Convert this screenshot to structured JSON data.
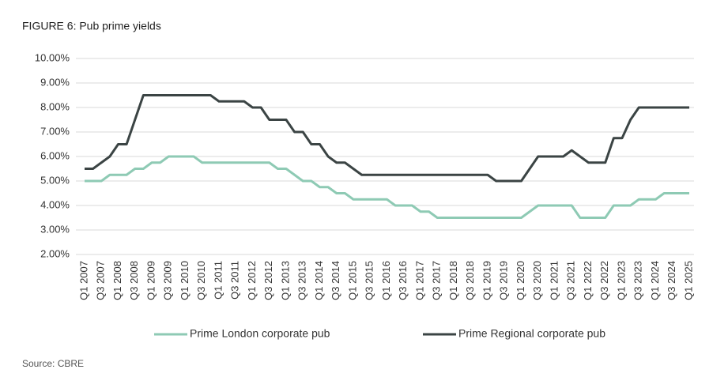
{
  "chart_data": {
    "type": "line",
    "title": "FIGURE 6: Pub prime yields",
    "source": "Source: CBRE",
    "categories": [
      "Q1 2007",
      null,
      "Q3 2007",
      null,
      "Q1 2008",
      null,
      "Q3 2008",
      null,
      "Q1 2009",
      null,
      "Q3 2009",
      null,
      "Q1 2010",
      null,
      "Q3 2010",
      null,
      "Q1 2011",
      null,
      "Q3 2011",
      null,
      "Q1 2012",
      null,
      "Q3 2012",
      null,
      "Q1 2013",
      null,
      "Q3 2013",
      null,
      "Q1 2014",
      null,
      "Q3 2014",
      null,
      "Q1 2015",
      null,
      "Q3 2015",
      null,
      "Q1 2016",
      null,
      "Q3 2016",
      null,
      "Q1 2017",
      null,
      "Q3 2017",
      null,
      "Q1 2018",
      null,
      "Q3 2018",
      null,
      "Q1 2019",
      null,
      "Q3 2019",
      null,
      "Q1 2020",
      null,
      "Q3 2020",
      null,
      "Q1 2021",
      null,
      "Q3 2021",
      null,
      "Q1 2022",
      null,
      "Q3 2022",
      null,
      "Q1 2023",
      null,
      "Q3 2023",
      null,
      "Q1 2024",
      null,
      "Q3 2024",
      null,
      "Q1 2025"
    ],
    "series": [
      {
        "name": "Prime London corporate pub",
        "color": "#8ecab4",
        "values": [
          5.0,
          5.0,
          5.0,
          5.25,
          5.25,
          5.25,
          5.5,
          5.5,
          5.75,
          5.75,
          6.0,
          6.0,
          6.0,
          6.0,
          5.75,
          5.75,
          5.75,
          5.75,
          5.75,
          5.75,
          5.75,
          5.75,
          5.75,
          5.5,
          5.5,
          5.25,
          5.0,
          5.0,
          4.75,
          4.75,
          4.5,
          4.5,
          4.25,
          4.25,
          4.25,
          4.25,
          4.25,
          4.0,
          4.0,
          4.0,
          3.75,
          3.75,
          3.5,
          3.5,
          3.5,
          3.5,
          3.5,
          3.5,
          3.5,
          3.5,
          3.5,
          3.5,
          3.5,
          3.75,
          4.0,
          4.0,
          4.0,
          4.0,
          4.0,
          3.5,
          3.5,
          3.5,
          3.5,
          4.0,
          4.0,
          4.0,
          4.25,
          4.25,
          4.25,
          4.5,
          4.5,
          4.5,
          4.5
        ]
      },
      {
        "name": "Prime Regional corporate pub",
        "color": "#3b4444",
        "values": [
          5.5,
          5.5,
          5.75,
          6.0,
          6.5,
          6.5,
          7.5,
          8.5,
          8.5,
          8.5,
          8.5,
          8.5,
          8.5,
          8.5,
          8.5,
          8.5,
          8.25,
          8.25,
          8.25,
          8.25,
          8.0,
          8.0,
          7.5,
          7.5,
          7.5,
          7.0,
          7.0,
          6.5,
          6.5,
          6.0,
          5.75,
          5.75,
          5.5,
          5.25,
          5.25,
          5.25,
          5.25,
          5.25,
          5.25,
          5.25,
          5.25,
          5.25,
          5.25,
          5.25,
          5.25,
          5.25,
          5.25,
          5.25,
          5.25,
          5.0,
          5.0,
          5.0,
          5.0,
          5.5,
          6.0,
          6.0,
          6.0,
          6.0,
          6.25,
          6.0,
          5.75,
          5.75,
          5.75,
          6.75,
          6.75,
          7.5,
          8.0,
          8.0,
          8.0,
          8.0,
          8.0,
          8.0,
          8.0
        ]
      }
    ],
    "ylim": [
      2,
      10
    ],
    "yticks": [
      {
        "value": 2,
        "label": "2.00%"
      },
      {
        "value": 3,
        "label": "3.00%"
      },
      {
        "value": 4,
        "label": "4.00%"
      },
      {
        "value": 5,
        "label": "5.00%"
      },
      {
        "value": 6,
        "label": "6.00%"
      },
      {
        "value": 7,
        "label": "7.00%"
      },
      {
        "value": 8,
        "label": "8.00%"
      },
      {
        "value": 9,
        "label": "9.00%"
      },
      {
        "value": 10,
        "label": "10.00%"
      }
    ],
    "grid": true
  }
}
